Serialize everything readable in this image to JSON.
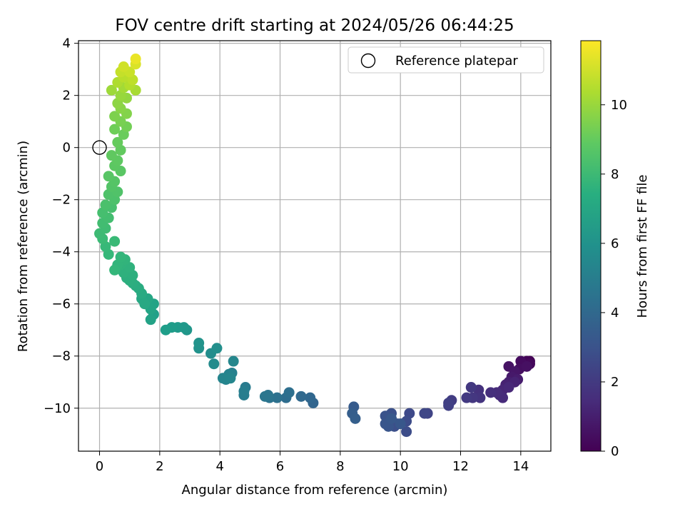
{
  "chart_data": {
    "type": "scatter",
    "title": "FOV centre drift starting at 2024/05/26 06:44:25",
    "xlabel": "Angular distance from reference (arcmin)",
    "ylabel": "Rotation from reference (arcmin)",
    "xlim": [
      -0.7,
      15.0
    ],
    "ylim": [
      -11.65,
      4.1
    ],
    "xticks": [
      0,
      2,
      4,
      6,
      8,
      10,
      12,
      14
    ],
    "yticks": [
      -10,
      -8,
      -6,
      -4,
      -2,
      0,
      2,
      4
    ],
    "grid": true,
    "legend": {
      "position": "upper-right",
      "entries": [
        "Reference platepar"
      ]
    },
    "reference_point": {
      "x": 0,
      "y": 0
    },
    "colorbar": {
      "label": "Hours from first FF file",
      "colormap": "viridis",
      "range": [
        0,
        11.85
      ],
      "ticks": [
        0,
        2,
        4,
        6,
        8,
        10
      ]
    },
    "points": [
      {
        "x": 14.3,
        "y": -8.2,
        "h": 0.0
      },
      {
        "x": 14.2,
        "y": -8.2,
        "h": 0.1
      },
      {
        "x": 14.1,
        "y": -8.3,
        "h": 0.2
      },
      {
        "x": 14.3,
        "y": -8.3,
        "h": 0.25
      },
      {
        "x": 14.0,
        "y": -8.2,
        "h": 0.35
      },
      {
        "x": 13.95,
        "y": -8.5,
        "h": 0.45
      },
      {
        "x": 14.2,
        "y": -8.4,
        "h": 0.5
      },
      {
        "x": 13.6,
        "y": -8.4,
        "h": 0.6
      },
      {
        "x": 13.8,
        "y": -8.6,
        "h": 0.7
      },
      {
        "x": 13.7,
        "y": -8.8,
        "h": 0.8
      },
      {
        "x": 13.9,
        "y": -8.9,
        "h": 0.9
      },
      {
        "x": 13.6,
        "y": -9.0,
        "h": 1.0
      },
      {
        "x": 13.5,
        "y": -9.1,
        "h": 1.1
      },
      {
        "x": 13.8,
        "y": -9.0,
        "h": 1.15
      },
      {
        "x": 13.4,
        "y": -9.3,
        "h": 1.25
      },
      {
        "x": 13.6,
        "y": -9.2,
        "h": 1.3
      },
      {
        "x": 13.3,
        "y": -9.5,
        "h": 1.4
      },
      {
        "x": 13.4,
        "y": -9.6,
        "h": 1.45
      },
      {
        "x": 13.2,
        "y": -9.4,
        "h": 1.5
      },
      {
        "x": 13.0,
        "y": -9.4,
        "h": 1.6
      },
      {
        "x": 12.6,
        "y": -9.3,
        "h": 1.7
      },
      {
        "x": 12.65,
        "y": -9.6,
        "h": 1.8
      },
      {
        "x": 12.4,
        "y": -9.6,
        "h": 1.9
      },
      {
        "x": 12.35,
        "y": -9.2,
        "h": 1.95
      },
      {
        "x": 12.2,
        "y": -9.6,
        "h": 2.0
      },
      {
        "x": 11.7,
        "y": -9.7,
        "h": 2.1
      },
      {
        "x": 11.6,
        "y": -9.8,
        "h": 2.2
      },
      {
        "x": 11.6,
        "y": -9.9,
        "h": 2.25
      },
      {
        "x": 10.9,
        "y": -10.2,
        "h": 2.4
      },
      {
        "x": 10.8,
        "y": -10.2,
        "h": 2.5
      },
      {
        "x": 10.3,
        "y": -10.2,
        "h": 2.6
      },
      {
        "x": 10.2,
        "y": -10.5,
        "h": 2.7
      },
      {
        "x": 10.2,
        "y": -10.9,
        "h": 2.75
      },
      {
        "x": 9.9,
        "y": -10.6,
        "h": 2.8
      },
      {
        "x": 9.8,
        "y": -10.7,
        "h": 2.85
      },
      {
        "x": 9.7,
        "y": -10.2,
        "h": 2.9
      },
      {
        "x": 9.6,
        "y": -10.5,
        "h": 3.0
      },
      {
        "x": 9.5,
        "y": -10.3,
        "h": 3.05
      },
      {
        "x": 9.6,
        "y": -10.7,
        "h": 3.1
      },
      {
        "x": 9.5,
        "y": -10.6,
        "h": 3.15
      },
      {
        "x": 10.0,
        "y": -10.6,
        "h": 3.2
      },
      {
        "x": 9.7,
        "y": -10.4,
        "h": 3.25
      },
      {
        "x": 8.45,
        "y": -9.95,
        "h": 3.4
      },
      {
        "x": 8.4,
        "y": -10.2,
        "h": 3.5
      },
      {
        "x": 8.5,
        "y": -10.4,
        "h": 3.55
      },
      {
        "x": 7.1,
        "y": -9.8,
        "h": 3.8
      },
      {
        "x": 7.0,
        "y": -9.6,
        "h": 3.9
      },
      {
        "x": 6.7,
        "y": -9.55,
        "h": 4.0
      },
      {
        "x": 6.2,
        "y": -9.6,
        "h": 4.2
      },
      {
        "x": 6.3,
        "y": -9.4,
        "h": 4.3
      },
      {
        "x": 5.9,
        "y": -9.6,
        "h": 4.4
      },
      {
        "x": 5.65,
        "y": -9.6,
        "h": 4.5
      },
      {
        "x": 5.6,
        "y": -9.5,
        "h": 4.6
      },
      {
        "x": 5.5,
        "y": -9.55,
        "h": 4.65
      },
      {
        "x": 4.85,
        "y": -9.2,
        "h": 4.9
      },
      {
        "x": 4.8,
        "y": -9.5,
        "h": 5.0
      },
      {
        "x": 4.8,
        "y": -9.35,
        "h": 5.05
      },
      {
        "x": 4.4,
        "y": -8.65,
        "h": 5.2
      },
      {
        "x": 4.3,
        "y": -8.7,
        "h": 5.3
      },
      {
        "x": 4.2,
        "y": -8.9,
        "h": 5.35
      },
      {
        "x": 4.1,
        "y": -8.85,
        "h": 5.4
      },
      {
        "x": 4.35,
        "y": -8.85,
        "h": 5.45
      },
      {
        "x": 4.45,
        "y": -8.2,
        "h": 5.5
      },
      {
        "x": 3.8,
        "y": -8.3,
        "h": 5.7
      },
      {
        "x": 3.7,
        "y": -7.9,
        "h": 5.8
      },
      {
        "x": 3.9,
        "y": -7.7,
        "h": 5.9
      },
      {
        "x": 3.3,
        "y": -7.7,
        "h": 6.0
      },
      {
        "x": 3.3,
        "y": -7.5,
        "h": 6.05
      },
      {
        "x": 2.9,
        "y": -7.0,
        "h": 6.2
      },
      {
        "x": 2.8,
        "y": -6.9,
        "h": 6.3
      },
      {
        "x": 2.6,
        "y": -6.9,
        "h": 6.4
      },
      {
        "x": 2.4,
        "y": -6.9,
        "h": 6.5
      },
      {
        "x": 2.2,
        "y": -7.0,
        "h": 6.6
      },
      {
        "x": 1.8,
        "y": -6.4,
        "h": 6.7
      },
      {
        "x": 1.7,
        "y": -6.6,
        "h": 6.8
      },
      {
        "x": 1.8,
        "y": -6.0,
        "h": 6.85
      },
      {
        "x": 1.7,
        "y": -6.2,
        "h": 6.9
      },
      {
        "x": 1.6,
        "y": -5.8,
        "h": 7.0
      },
      {
        "x": 1.4,
        "y": -5.8,
        "h": 7.05
      },
      {
        "x": 1.5,
        "y": -6.0,
        "h": 7.1
      },
      {
        "x": 1.4,
        "y": -5.6,
        "h": 7.2
      },
      {
        "x": 1.3,
        "y": -5.4,
        "h": 7.25
      },
      {
        "x": 1.2,
        "y": -5.3,
        "h": 7.3
      },
      {
        "x": 1.1,
        "y": -5.2,
        "h": 7.35
      },
      {
        "x": 1.0,
        "y": -5.1,
        "h": 7.4
      },
      {
        "x": 0.9,
        "y": -5.0,
        "h": 7.45
      },
      {
        "x": 1.1,
        "y": -4.9,
        "h": 7.5
      },
      {
        "x": 0.8,
        "y": -4.8,
        "h": 7.55
      },
      {
        "x": 1.0,
        "y": -4.6,
        "h": 7.6
      },
      {
        "x": 0.7,
        "y": -4.5,
        "h": 7.65
      },
      {
        "x": 0.85,
        "y": -4.3,
        "h": 7.7
      },
      {
        "x": 0.6,
        "y": -4.5,
        "h": 7.75
      },
      {
        "x": 0.7,
        "y": -4.2,
        "h": 7.8
      },
      {
        "x": 0.5,
        "y": -4.7,
        "h": 7.85
      },
      {
        "x": 0.3,
        "y": -4.1,
        "h": 7.9
      },
      {
        "x": 0.2,
        "y": -3.8,
        "h": 7.95
      },
      {
        "x": 0.5,
        "y": -3.6,
        "h": 8.0
      },
      {
        "x": 0.1,
        "y": -3.5,
        "h": 8.05
      },
      {
        "x": 0.0,
        "y": -3.3,
        "h": 8.1
      },
      {
        "x": 0.2,
        "y": -3.1,
        "h": 8.15
      },
      {
        "x": 0.1,
        "y": -2.9,
        "h": 8.2
      },
      {
        "x": 0.3,
        "y": -2.7,
        "h": 8.25
      },
      {
        "x": 0.1,
        "y": -2.5,
        "h": 8.3
      },
      {
        "x": 0.4,
        "y": -2.3,
        "h": 8.35
      },
      {
        "x": 0.2,
        "y": -2.2,
        "h": 8.4
      },
      {
        "x": 0.5,
        "y": -2.0,
        "h": 8.45
      },
      {
        "x": 0.3,
        "y": -1.8,
        "h": 8.5
      },
      {
        "x": 0.6,
        "y": -1.7,
        "h": 8.55
      },
      {
        "x": 0.4,
        "y": -1.5,
        "h": 8.6
      },
      {
        "x": 0.5,
        "y": -1.3,
        "h": 8.65
      },
      {
        "x": 0.3,
        "y": -1.1,
        "h": 8.7
      },
      {
        "x": 0.7,
        "y": -0.9,
        "h": 8.75
      },
      {
        "x": 0.5,
        "y": -0.7,
        "h": 8.8
      },
      {
        "x": 0.6,
        "y": -0.5,
        "h": 8.85
      },
      {
        "x": 0.4,
        "y": -0.3,
        "h": 8.9
      },
      {
        "x": 0.7,
        "y": -0.1,
        "h": 8.95
      },
      {
        "x": 0.6,
        "y": 0.2,
        "h": 9.0
      },
      {
        "x": 0.8,
        "y": 0.5,
        "h": 9.1
      },
      {
        "x": 0.5,
        "y": 0.7,
        "h": 9.2
      },
      {
        "x": 0.9,
        "y": 0.8,
        "h": 9.3
      },
      {
        "x": 0.7,
        "y": 1.0,
        "h": 9.4
      },
      {
        "x": 0.5,
        "y": 1.2,
        "h": 9.5
      },
      {
        "x": 0.9,
        "y": 1.3,
        "h": 9.6
      },
      {
        "x": 0.7,
        "y": 1.5,
        "h": 9.7
      },
      {
        "x": 0.6,
        "y": 1.7,
        "h": 9.8
      },
      {
        "x": 0.9,
        "y": 1.9,
        "h": 9.9
      },
      {
        "x": 0.7,
        "y": 2.0,
        "h": 10.0
      },
      {
        "x": 0.4,
        "y": 2.2,
        "h": 10.1
      },
      {
        "x": 0.8,
        "y": 2.3,
        "h": 10.2
      },
      {
        "x": 1.2,
        "y": 2.2,
        "h": 10.3
      },
      {
        "x": 0.6,
        "y": 2.5,
        "h": 10.4
      },
      {
        "x": 1.0,
        "y": 2.4,
        "h": 10.5
      },
      {
        "x": 0.8,
        "y": 2.7,
        "h": 10.6
      },
      {
        "x": 1.1,
        "y": 2.6,
        "h": 10.7
      },
      {
        "x": 0.7,
        "y": 2.9,
        "h": 10.8
      },
      {
        "x": 1.0,
        "y": 2.9,
        "h": 10.9
      },
      {
        "x": 0.8,
        "y": 3.1,
        "h": 11.0
      },
      {
        "x": 1.2,
        "y": 3.2,
        "h": 11.2
      },
      {
        "x": 1.2,
        "y": 3.4,
        "h": 11.5
      }
    ]
  }
}
